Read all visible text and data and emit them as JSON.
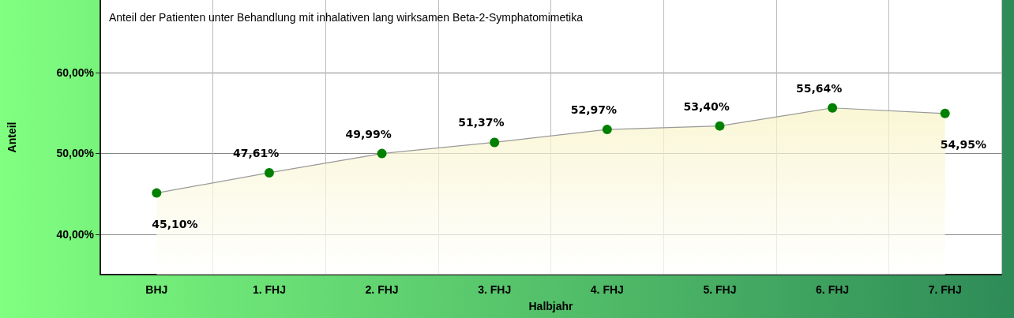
{
  "chart_data": {
    "type": "area",
    "title": "Anteil der Patienten unter Behandlung mit inhalativen lang wirksamen Beta-2-Symphatomimetika",
    "xlabel": "Halbjahr",
    "ylabel": "Anteil",
    "categories": [
      "BHJ",
      "1. FHJ",
      "2. FHJ",
      "3. FHJ",
      "4. FHJ",
      "5. FHJ",
      "6. FHJ",
      "7. FHJ"
    ],
    "series": [
      {
        "color": "#008000",
        "values": [
          45.1,
          47.61,
          49.99,
          51.37,
          52.97,
          53.4,
          55.64,
          54.95
        ],
        "value_labels": [
          "45,10%",
          "47,61%",
          "49,99%",
          "51,37%",
          "52,97%",
          "53,40%",
          "55,64%",
          "54,95%"
        ]
      }
    ],
    "ylim": [
      35,
      69
    ],
    "yticks": [
      {
        "value": 40,
        "label": "40,00%"
      },
      {
        "value": 50,
        "label": "50,00%"
      },
      {
        "value": 60,
        "label": "60,00%"
      }
    ],
    "grid": true,
    "marker": "circle"
  }
}
